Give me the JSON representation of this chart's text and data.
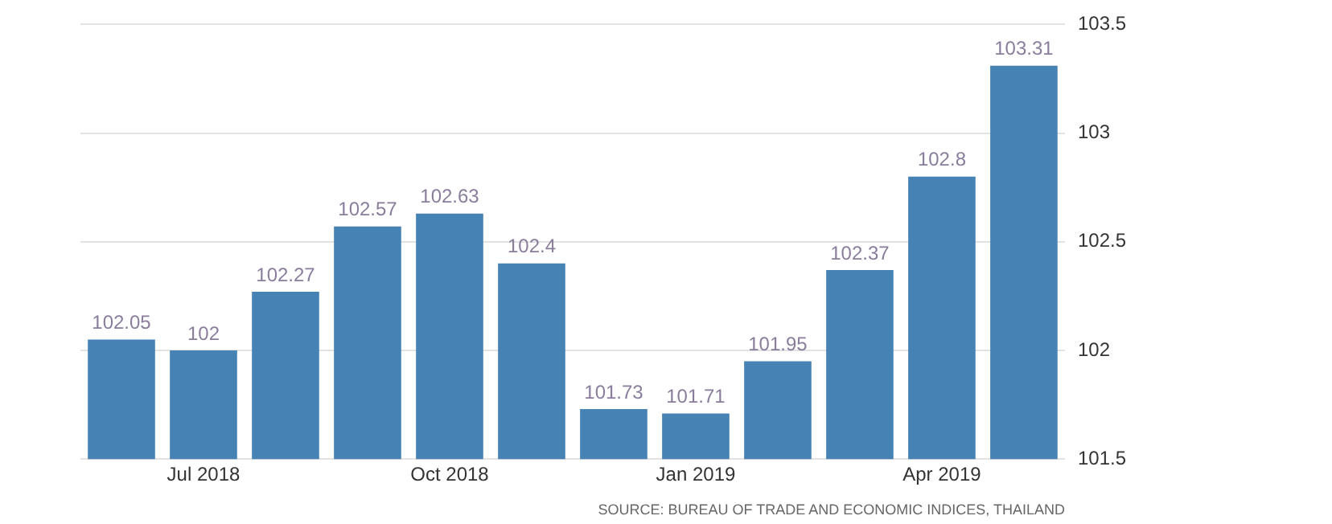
{
  "chart_data": {
    "type": "bar",
    "categories": [
      null,
      "Jul 2018",
      null,
      null,
      "Oct 2018",
      null,
      null,
      "Jan 2019",
      null,
      null,
      "Apr 2019",
      null
    ],
    "values": [
      102.05,
      102,
      102.27,
      102.57,
      102.63,
      102.4,
      101.73,
      101.71,
      101.95,
      102.37,
      102.8,
      103.31
    ],
    "color": "#4682b4",
    "ylim": [
      101.5,
      103.5
    ],
    "yticks": [
      101.5,
      102,
      102.5,
      103,
      103.5
    ],
    "grid": "y",
    "data_labels": true,
    "annotations": [
      "SOURCE: BUREAU OF TRADE AND ECONOMIC INDICES, THAILAND"
    ]
  }
}
